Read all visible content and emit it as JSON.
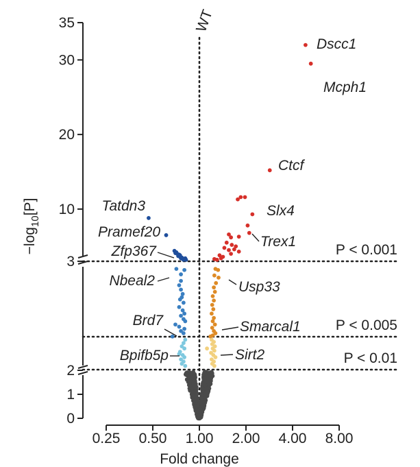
{
  "chart_data": {
    "type": "scatter",
    "subtype": "volcano",
    "title": "",
    "xlabel": "Fold change",
    "ylabel": "−log10[P]",
    "ylabel_parts": {
      "before": "−log",
      "sub": "10",
      "after": "[P]"
    },
    "x_scale": "log2",
    "x_ticks": [
      {
        "value": 0.25,
        "label": "0.25"
      },
      {
        "value": 0.5,
        "label": "0.50"
      },
      {
        "value": 1.0,
        "label": "1.00"
      },
      {
        "value": 2.0,
        "label": "2.00"
      },
      {
        "value": 4.0,
        "label": "4.00"
      },
      {
        "value": 8.0,
        "label": "8.00"
      }
    ],
    "xlim": [
      0.22,
      8.5
    ],
    "y_axis_type": "broken",
    "y_segments": [
      {
        "range": [
          0,
          2
        ],
        "ticks": [
          {
            "value": 0,
            "label": "0"
          },
          {
            "value": 1,
            "label": "1"
          },
          {
            "value": 2,
            "label": "2"
          }
        ]
      },
      {
        "range": [
          2,
          3
        ],
        "ticks": [
          {
            "value": 2,
            "label": "2"
          },
          {
            "value": 3,
            "label": "3"
          }
        ]
      },
      {
        "range": [
          3,
          35
        ],
        "ticks": [
          {
            "value": 3,
            "label": "3"
          },
          {
            "value": 10,
            "label": "10"
          },
          {
            "value": 20,
            "label": "20"
          },
          {
            "value": 30,
            "label": "30"
          },
          {
            "value": 35,
            "label": "35"
          }
        ]
      }
    ],
    "reference_line": {
      "label": "WT",
      "x": 1.0
    },
    "thresholds": [
      {
        "label": "P < 0.001",
        "y": 3
      },
      {
        "label": "P < 0.005",
        "y": 2.3
      },
      {
        "label": "P < 0.01",
        "y": 2
      }
    ],
    "colors": {
      "ns": "#4a4a4a",
      "down_001": "#1f4e9c",
      "down_005": "#3a7fc1",
      "down_01": "#7ec8df",
      "up_001": "#d6302a",
      "up_005": "#de8b26",
      "up_01": "#f2d07e"
    },
    "series": [
      {
        "group": "down_001",
        "points": [
          {
            "x": 0.47,
            "y": 8.8
          },
          {
            "x": 0.61,
            "y": 6.5
          },
          {
            "x": 0.69,
            "y": 4.4
          },
          {
            "x": 0.71,
            "y": 4.2
          },
          {
            "x": 0.72,
            "y": 4.0
          },
          {
            "x": 0.74,
            "y": 3.9
          },
          {
            "x": 0.73,
            "y": 3.7
          },
          {
            "x": 0.75,
            "y": 3.6
          },
          {
            "x": 0.77,
            "y": 3.5
          },
          {
            "x": 0.76,
            "y": 3.4
          },
          {
            "x": 0.78,
            "y": 3.3
          },
          {
            "x": 0.8,
            "y": 3.3
          },
          {
            "x": 0.79,
            "y": 3.2
          },
          {
            "x": 0.82,
            "y": 3.2
          },
          {
            "x": 0.7,
            "y": 4.1
          },
          {
            "x": 0.75,
            "y": 3.8
          },
          {
            "x": 0.81,
            "y": 3.4
          }
        ]
      },
      {
        "group": "down_005",
        "points": [
          {
            "x": 0.71,
            "y": 2.93
          },
          {
            "x": 0.76,
            "y": 2.88
          },
          {
            "x": 0.8,
            "y": 2.92
          },
          {
            "x": 0.76,
            "y": 2.82
          },
          {
            "x": 0.74,
            "y": 2.78
          },
          {
            "x": 0.76,
            "y": 2.74
          },
          {
            "x": 0.78,
            "y": 2.7
          },
          {
            "x": 0.77,
            "y": 2.67
          },
          {
            "x": 0.75,
            "y": 2.65
          },
          {
            "x": 0.79,
            "y": 2.62
          },
          {
            "x": 0.74,
            "y": 2.58
          },
          {
            "x": 0.78,
            "y": 2.55
          },
          {
            "x": 0.8,
            "y": 2.52
          },
          {
            "x": 0.76,
            "y": 2.5
          },
          {
            "x": 0.79,
            "y": 2.47
          },
          {
            "x": 0.81,
            "y": 2.45
          },
          {
            "x": 0.7,
            "y": 2.42
          },
          {
            "x": 0.74,
            "y": 2.4
          },
          {
            "x": 0.8,
            "y": 2.38
          },
          {
            "x": 0.76,
            "y": 2.36
          },
          {
            "x": 0.79,
            "y": 2.34
          },
          {
            "x": 0.67,
            "y": 2.31
          }
        ]
      },
      {
        "group": "down_01",
        "points": [
          {
            "x": 0.81,
            "y": 2.28
          },
          {
            "x": 0.79,
            "y": 2.25
          },
          {
            "x": 0.77,
            "y": 2.22
          },
          {
            "x": 0.8,
            "y": 2.2
          },
          {
            "x": 0.75,
            "y": 2.17
          },
          {
            "x": 0.78,
            "y": 2.14
          },
          {
            "x": 0.8,
            "y": 2.12
          },
          {
            "x": 0.76,
            "y": 2.1
          },
          {
            "x": 0.79,
            "y": 2.08
          },
          {
            "x": 0.77,
            "y": 2.06
          },
          {
            "x": 0.81,
            "y": 2.04
          },
          {
            "x": 0.74,
            "y": 2.15
          }
        ]
      },
      {
        "group": "up_001",
        "points": [
          {
            "x": 4.85,
            "y": 32.0
          },
          {
            "x": 5.25,
            "y": 29.5
          },
          {
            "x": 2.85,
            "y": 15.2
          },
          {
            "x": 2.2,
            "y": 9.3
          },
          {
            "x": 1.85,
            "y": 11.6
          },
          {
            "x": 1.97,
            "y": 11.6
          },
          {
            "x": 1.77,
            "y": 11.3
          },
          {
            "x": 2.05,
            "y": 7.8
          },
          {
            "x": 2.1,
            "y": 6.8
          },
          {
            "x": 1.55,
            "y": 6.6
          },
          {
            "x": 1.6,
            "y": 6.2
          },
          {
            "x": 1.8,
            "y": 6.3
          },
          {
            "x": 1.5,
            "y": 5.5
          },
          {
            "x": 1.62,
            "y": 5.2
          },
          {
            "x": 1.72,
            "y": 5.0
          },
          {
            "x": 1.45,
            "y": 4.8
          },
          {
            "x": 1.55,
            "y": 4.5
          },
          {
            "x": 1.68,
            "y": 4.6
          },
          {
            "x": 1.8,
            "y": 4.3
          },
          {
            "x": 1.6,
            "y": 4.0
          },
          {
            "x": 1.35,
            "y": 3.8
          },
          {
            "x": 1.42,
            "y": 3.6
          },
          {
            "x": 1.25,
            "y": 3.3
          },
          {
            "x": 1.3,
            "y": 3.2
          },
          {
            "x": 1.38,
            "y": 3.4
          }
        ]
      },
      {
        "group": "up_005",
        "points": [
          {
            "x": 1.27,
            "y": 2.93
          },
          {
            "x": 1.32,
            "y": 2.92
          },
          {
            "x": 1.25,
            "y": 2.87
          },
          {
            "x": 1.33,
            "y": 2.85
          },
          {
            "x": 1.28,
            "y": 2.8
          },
          {
            "x": 1.24,
            "y": 2.76
          },
          {
            "x": 1.26,
            "y": 2.72
          },
          {
            "x": 1.22,
            "y": 2.68
          },
          {
            "x": 1.24,
            "y": 2.64
          },
          {
            "x": 1.21,
            "y": 2.6
          },
          {
            "x": 1.23,
            "y": 2.56
          },
          {
            "x": 1.2,
            "y": 2.52
          },
          {
            "x": 1.24,
            "y": 2.48
          },
          {
            "x": 1.22,
            "y": 2.45
          },
          {
            "x": 1.26,
            "y": 2.42
          },
          {
            "x": 1.21,
            "y": 2.39
          },
          {
            "x": 1.24,
            "y": 2.36
          },
          {
            "x": 1.27,
            "y": 2.34
          },
          {
            "x": 1.22,
            "y": 2.32
          },
          {
            "x": 1.18,
            "y": 2.31
          }
        ]
      },
      {
        "group": "up_01",
        "points": [
          {
            "x": 1.2,
            "y": 2.28
          },
          {
            "x": 1.24,
            "y": 2.26
          },
          {
            "x": 1.21,
            "y": 2.24
          },
          {
            "x": 1.26,
            "y": 2.22
          },
          {
            "x": 1.22,
            "y": 2.2
          },
          {
            "x": 1.25,
            "y": 2.18
          },
          {
            "x": 1.19,
            "y": 2.16
          },
          {
            "x": 1.23,
            "y": 2.14
          },
          {
            "x": 1.27,
            "y": 2.12
          },
          {
            "x": 1.2,
            "y": 2.1
          },
          {
            "x": 1.24,
            "y": 2.08
          },
          {
            "x": 1.21,
            "y": 2.06
          },
          {
            "x": 1.25,
            "y": 2.04
          },
          {
            "x": 1.12,
            "y": 2.2
          }
        ]
      }
    ],
    "annotations": [
      {
        "text": "Dscc1",
        "x": 4.85,
        "y": 32.0,
        "side": "right",
        "leader": false
      },
      {
        "text": "Mcph1",
        "x": 5.25,
        "y": 29.5,
        "side": "right",
        "leader": false
      },
      {
        "text": "Ctcf",
        "x": 2.85,
        "y": 15.2,
        "side": "right",
        "leader": false
      },
      {
        "text": "Slx4",
        "x": 2.2,
        "y": 9.3,
        "side": "right",
        "leader": false
      },
      {
        "text": "Trex1",
        "x": 2.1,
        "y": 6.8,
        "side": "right",
        "leader": true
      },
      {
        "text": "Usp33",
        "x": 1.32,
        "y": 2.92,
        "side": "right",
        "leader": true
      },
      {
        "text": "Smarcal1",
        "x": 1.27,
        "y": 2.34,
        "side": "right",
        "leader": true
      },
      {
        "text": "Sirt2",
        "x": 1.25,
        "y": 2.04,
        "side": "right",
        "leader": true
      },
      {
        "text": "Tatdn3",
        "x": 0.47,
        "y": 8.8,
        "side": "left",
        "leader": false
      },
      {
        "text": "Pramef20",
        "x": 0.61,
        "y": 6.5,
        "side": "left",
        "leader": false
      },
      {
        "text": "Zfp367",
        "x": 0.69,
        "y": 4.4,
        "side": "left",
        "leader": true
      },
      {
        "text": "Nbeal2",
        "x": 0.71,
        "y": 2.93,
        "side": "left",
        "leader": true
      },
      {
        "text": "Brd7",
        "x": 0.67,
        "y": 2.31,
        "side": "left",
        "leader": true
      },
      {
        "text": "Bpifb5p",
        "x": 0.74,
        "y": 2.15,
        "side": "left",
        "leader": true
      }
    ]
  }
}
